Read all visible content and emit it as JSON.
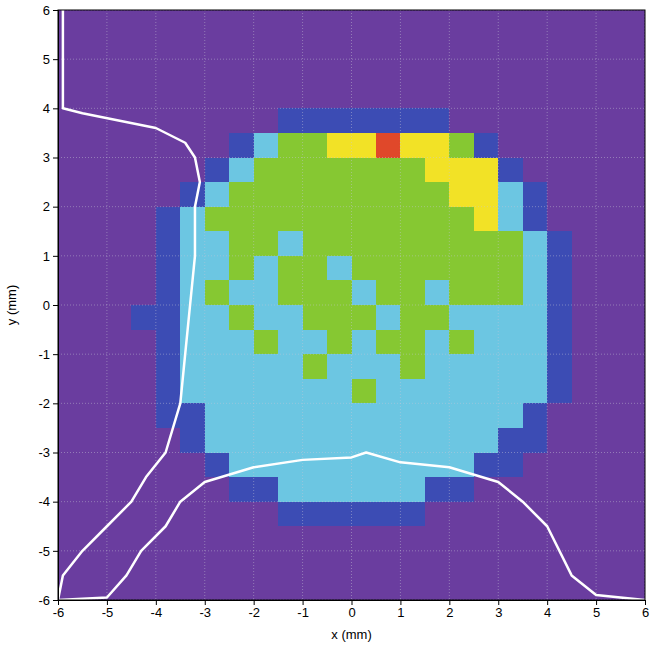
{
  "chart_data": {
    "type": "heatmap",
    "xlabel": "x (mm)",
    "ylabel": "y (mm)",
    "xlim": [
      -6,
      6
    ],
    "ylim": [
      -6,
      6
    ],
    "xticks": [
      -6,
      -5,
      -4,
      -3,
      -2,
      -1,
      0,
      1,
      2,
      3,
      4,
      5,
      6
    ],
    "yticks": [
      -6,
      -5,
      -4,
      -3,
      -2,
      -1,
      0,
      1,
      2,
      3,
      4,
      5,
      6
    ],
    "grid": true,
    "zlim": [
      0,
      5
    ],
    "x": [
      -5.75,
      -5.25,
      -4.75,
      -4.25,
      -3.75,
      -3.25,
      -2.75,
      -2.25,
      -1.75,
      -1.25,
      -0.75,
      -0.25,
      0.25,
      0.75,
      1.25,
      1.75,
      2.25,
      2.75,
      3.25,
      3.75,
      4.25,
      4.75,
      5.25,
      5.75
    ],
    "y": [
      5.75,
      5.25,
      4.75,
      4.25,
      3.75,
      3.25,
      2.75,
      2.25,
      1.75,
      1.25,
      0.75,
      0.25,
      -0.25,
      -0.75,
      -1.25,
      -1.75,
      -2.25,
      -2.75,
      -3.25,
      -3.75,
      -4.25,
      -4.75,
      -5.25,
      -5.75
    ],
    "cells": [
      [
        0,
        0,
        0,
        0,
        0,
        0,
        0,
        0,
        0,
        0,
        0,
        0,
        0,
        0,
        0,
        0,
        0,
        0,
        0,
        0,
        0,
        0,
        0,
        0
      ],
      [
        0,
        0,
        0,
        0,
        0,
        0,
        0,
        0,
        0,
        0,
        0,
        0,
        0,
        0,
        0,
        0,
        0,
        0,
        0,
        0,
        0,
        0,
        0,
        0
      ],
      [
        0,
        0,
        0,
        0,
        0,
        0,
        0,
        0,
        0,
        0,
        0,
        0,
        0,
        0,
        0,
        0,
        0,
        0,
        0,
        0,
        0,
        0,
        0,
        0
      ],
      [
        0,
        0,
        0,
        0,
        0,
        0,
        0,
        0,
        0,
        0,
        0,
        0,
        0,
        0,
        0,
        0,
        0,
        0,
        0,
        0,
        0,
        0,
        0,
        0
      ],
      [
        0,
        0,
        0,
        0,
        0,
        0,
        0,
        0,
        0,
        1,
        1,
        1,
        1,
        1,
        1,
        1,
        0,
        0,
        0,
        0,
        0,
        0,
        0,
        0
      ],
      [
        0,
        0,
        0,
        0,
        0,
        0,
        0,
        1,
        2,
        3,
        3,
        4,
        4,
        5,
        4,
        4,
        3,
        1,
        0,
        0,
        0,
        0,
        0,
        0
      ],
      [
        0,
        0,
        0,
        0,
        0,
        0,
        1,
        2,
        3,
        3,
        3,
        3,
        3,
        3,
        3,
        4,
        4,
        4,
        1,
        0,
        0,
        0,
        0,
        0
      ],
      [
        0,
        0,
        0,
        0,
        0,
        1,
        2,
        3,
        3,
        3,
        3,
        3,
        3,
        3,
        3,
        3,
        4,
        4,
        2,
        1,
        0,
        0,
        0,
        0
      ],
      [
        0,
        0,
        0,
        0,
        1,
        2,
        3,
        3,
        3,
        3,
        3,
        3,
        3,
        3,
        3,
        3,
        3,
        4,
        2,
        1,
        0,
        0,
        0,
        0
      ],
      [
        0,
        0,
        0,
        0,
        1,
        2,
        2,
        3,
        3,
        2,
        3,
        3,
        3,
        3,
        3,
        3,
        3,
        3,
        3,
        2,
        1,
        0,
        0,
        0
      ],
      [
        0,
        0,
        0,
        0,
        1,
        2,
        2,
        3,
        2,
        3,
        3,
        2,
        3,
        3,
        3,
        3,
        3,
        3,
        3,
        2,
        1,
        0,
        0,
        0
      ],
      [
        0,
        0,
        0,
        0,
        1,
        2,
        3,
        2,
        2,
        3,
        3,
        3,
        2,
        3,
        3,
        2,
        3,
        3,
        3,
        2,
        1,
        0,
        0,
        0
      ],
      [
        0,
        0,
        0,
        1,
        1,
        2,
        2,
        3,
        2,
        2,
        3,
        3,
        3,
        2,
        3,
        3,
        2,
        2,
        2,
        2,
        1,
        0,
        0,
        0
      ],
      [
        0,
        0,
        0,
        0,
        1,
        2,
        2,
        2,
        3,
        2,
        2,
        3,
        2,
        3,
        3,
        2,
        3,
        2,
        2,
        2,
        1,
        0,
        0,
        0
      ],
      [
        0,
        0,
        0,
        0,
        1,
        2,
        2,
        2,
        2,
        2,
        3,
        2,
        2,
        2,
        3,
        2,
        2,
        2,
        2,
        2,
        1,
        0,
        0,
        0
      ],
      [
        0,
        0,
        0,
        0,
        1,
        2,
        2,
        2,
        2,
        2,
        2,
        2,
        3,
        2,
        2,
        2,
        2,
        2,
        2,
        2,
        1,
        0,
        0,
        0
      ],
      [
        0,
        0,
        0,
        0,
        1,
        1,
        2,
        2,
        2,
        2,
        2,
        2,
        2,
        2,
        2,
        2,
        2,
        2,
        2,
        1,
        0,
        0,
        0,
        0
      ],
      [
        0,
        0,
        0,
        0,
        0,
        1,
        2,
        2,
        2,
        2,
        2,
        2,
        2,
        2,
        2,
        2,
        2,
        2,
        1,
        1,
        0,
        0,
        0,
        0
      ],
      [
        0,
        0,
        0,
        0,
        0,
        0,
        1,
        2,
        2,
        2,
        2,
        2,
        2,
        2,
        2,
        2,
        2,
        1,
        1,
        0,
        0,
        0,
        0,
        0
      ],
      [
        0,
        0,
        0,
        0,
        0,
        0,
        0,
        1,
        1,
        2,
        2,
        2,
        2,
        2,
        2,
        1,
        1,
        0,
        0,
        0,
        0,
        0,
        0,
        0
      ],
      [
        0,
        0,
        0,
        0,
        0,
        0,
        0,
        0,
        0,
        1,
        1,
        1,
        1,
        1,
        1,
        0,
        0,
        0,
        0,
        0,
        0,
        0,
        0,
        0
      ],
      [
        0,
        0,
        0,
        0,
        0,
        0,
        0,
        0,
        0,
        0,
        0,
        0,
        0,
        0,
        0,
        0,
        0,
        0,
        0,
        0,
        0,
        0,
        0,
        0
      ],
      [
        0,
        0,
        0,
        0,
        0,
        0,
        0,
        0,
        0,
        0,
        0,
        0,
        0,
        0,
        0,
        0,
        0,
        0,
        0,
        0,
        0,
        0,
        0,
        0
      ],
      [
        0,
        0,
        0,
        0,
        0,
        0,
        0,
        0,
        0,
        0,
        0,
        0,
        0,
        0,
        0,
        0,
        0,
        0,
        0,
        0,
        0,
        0,
        0,
        0
      ]
    ],
    "series": [
      {
        "type": "line",
        "color": "#ffffff",
        "x": [
          -5.9,
          -5.9,
          -5.5,
          -4.0,
          -3.4,
          -3.2,
          -3.1,
          -3.2,
          -3.2,
          -3.3,
          -3.4,
          -3.5,
          -3.8,
          -4.2,
          -4.5,
          -5.0,
          -5.5,
          -5.9,
          -6.0
        ],
        "y": [
          6.0,
          4.0,
          3.9,
          3.6,
          3.3,
          3.0,
          2.5,
          2.0,
          1.0,
          0.0,
          -1.0,
          -2.0,
          -3.0,
          -3.5,
          -4.0,
          -4.5,
          -5.0,
          -5.5,
          -6.0
        ]
      },
      {
        "type": "line",
        "color": "#ffffff",
        "x": [
          -6.0,
          -5.0,
          -4.6,
          -4.3,
          -3.8,
          -3.5,
          -3.0,
          -2.0,
          -1.0,
          0.0,
          0.3,
          1.0,
          2.0,
          3.0,
          3.5,
          4.0,
          4.5,
          5.0,
          6.0
        ],
        "y": [
          -6.0,
          -5.95,
          -5.5,
          -5.0,
          -4.5,
          -4.0,
          -3.6,
          -3.3,
          -3.15,
          -3.1,
          -3.0,
          -3.2,
          -3.3,
          -3.6,
          -4.0,
          -4.5,
          -5.5,
          -5.9,
          -6.0
        ]
      }
    ]
  }
}
